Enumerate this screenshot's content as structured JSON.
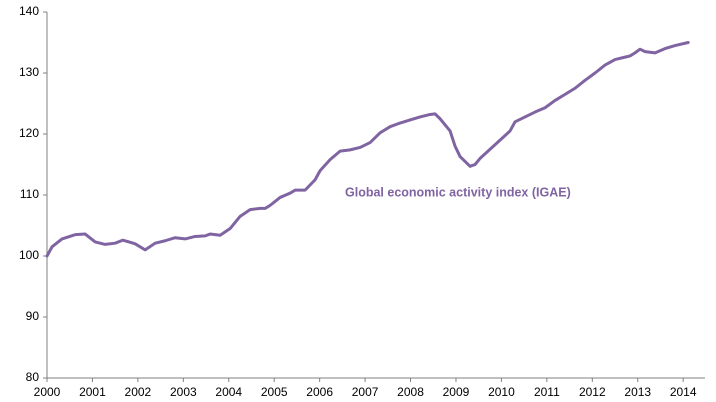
{
  "chart_data": {
    "type": "line",
    "annotation": "Global economic activity index (IGAE)",
    "series": [
      {
        "name": "Global economic activity index (IGAE)",
        "color": "#8064a2",
        "x": [
          2000.0,
          2000.11,
          2000.33,
          2000.62,
          2000.84,
          2001.06,
          2001.28,
          2001.5,
          2001.67,
          2001.94,
          2002.16,
          2002.38,
          2002.6,
          2002.82,
          2003.04,
          2003.26,
          2003.48,
          2003.59,
          2003.81,
          2004.03,
          2004.25,
          2004.47,
          2004.69,
          2004.8,
          2004.91,
          2005.13,
          2005.35,
          2005.46,
          2005.68,
          2005.9,
          2006.01,
          2006.23,
          2006.45,
          2006.67,
          2006.89,
          2007.11,
          2007.33,
          2007.55,
          2007.77,
          2007.99,
          2008.21,
          2008.43,
          2008.54,
          2008.65,
          2008.87,
          2008.98,
          2009.09,
          2009.2,
          2009.31,
          2009.42,
          2009.53,
          2009.75,
          2009.97,
          2010.19,
          2010.3,
          2010.52,
          2010.74,
          2010.96,
          2011.18,
          2011.4,
          2011.62,
          2011.84,
          2012.06,
          2012.28,
          2012.5,
          2012.72,
          2012.83,
          2012.94,
          2013.05,
          2013.16,
          2013.38,
          2013.6,
          2013.82,
          2014.11
        ],
        "values": [
          100,
          101.5,
          102.8,
          103.5,
          103.6,
          102.3,
          101.9,
          102.1,
          102.6,
          102,
          101,
          102.1,
          102.5,
          103,
          102.8,
          103.2,
          103.3,
          103.6,
          103.4,
          104.5,
          106.5,
          107.6,
          107.8,
          107.8,
          108.3,
          109.6,
          110.3,
          110.8,
          110.8,
          112.5,
          114,
          115.8,
          117.2,
          117.4,
          117.8,
          118.6,
          120.2,
          121.2,
          121.8,
          122.3,
          122.8,
          123.2,
          123.3,
          122.5,
          120.5,
          118,
          116.3,
          115.5,
          114.7,
          115,
          116,
          117.5,
          119,
          120.5,
          122,
          122.8,
          123.6,
          124.3,
          125.5,
          126.5,
          127.5,
          128.8,
          130,
          131.3,
          132.2,
          132.6,
          132.8,
          133.3,
          133.9,
          133.5,
          133.3,
          134,
          134.5,
          135
        ]
      }
    ],
    "xlim": [
      2000,
      2014.48
    ],
    "xticks": [
      2000,
      2001,
      2002,
      2003,
      2004,
      2005,
      2006,
      2007,
      2008,
      2009,
      2010,
      2011,
      2012,
      2013,
      2014
    ],
    "ylim": [
      80,
      140
    ],
    "yticks": [
      80,
      90,
      100,
      110,
      120,
      130,
      140
    ],
    "grid": false
  }
}
